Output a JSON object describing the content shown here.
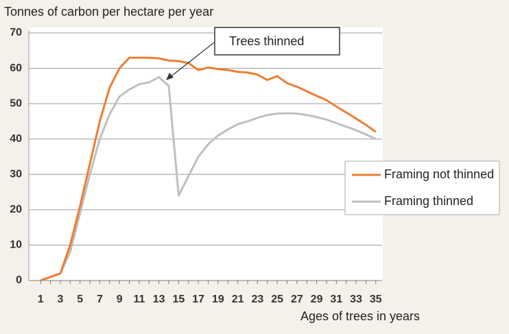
{
  "chart_data": {
    "type": "line",
    "y_label": "Tonnes of carbon per hectare per year",
    "x_label": "Ages of trees in years",
    "annotation": "Trees thinned",
    "categories": [
      1,
      null,
      3,
      null,
      5,
      null,
      7,
      null,
      9,
      null,
      11,
      null,
      13,
      null,
      15,
      null,
      17,
      null,
      19,
      null,
      21,
      null,
      23,
      null,
      25,
      null,
      27,
      null,
      29,
      null,
      31,
      null,
      33,
      null,
      35
    ],
    "series": [
      {
        "name": "Framing not thinned",
        "color": "#ed7d31",
        "values": [
          0,
          1,
          2,
          10,
          21,
          33,
          45,
          54.5,
          60,
          63,
          63,
          63,
          62.8,
          62.2,
          62,
          61.5,
          59.5,
          60.2,
          59.8,
          59.5,
          59,
          58.8,
          58.2,
          56.7,
          57.8,
          55.8,
          54.8,
          53.5,
          52.2,
          51,
          49.2,
          47.5,
          45.8,
          44,
          42
        ]
      },
      {
        "name": "Framing thinned",
        "color": "#bfbfbf",
        "values": [
          0,
          1,
          2,
          8,
          19,
          30,
          40,
          47,
          52,
          54,
          55.5,
          56,
          57.5,
          55,
          24,
          29.5,
          35,
          38.5,
          41,
          42.7,
          44.2,
          45,
          46,
          46.8,
          47.2,
          47.3,
          47.2,
          46.8,
          46.2,
          45.5,
          44.5,
          43.5,
          42.5,
          41.3,
          40
        ]
      }
    ],
    "ylim": [
      0,
      70
    ],
    "yticks": [
      0,
      10,
      20,
      30,
      40,
      50,
      60,
      70
    ],
    "grid": true,
    "legend": "right"
  }
}
